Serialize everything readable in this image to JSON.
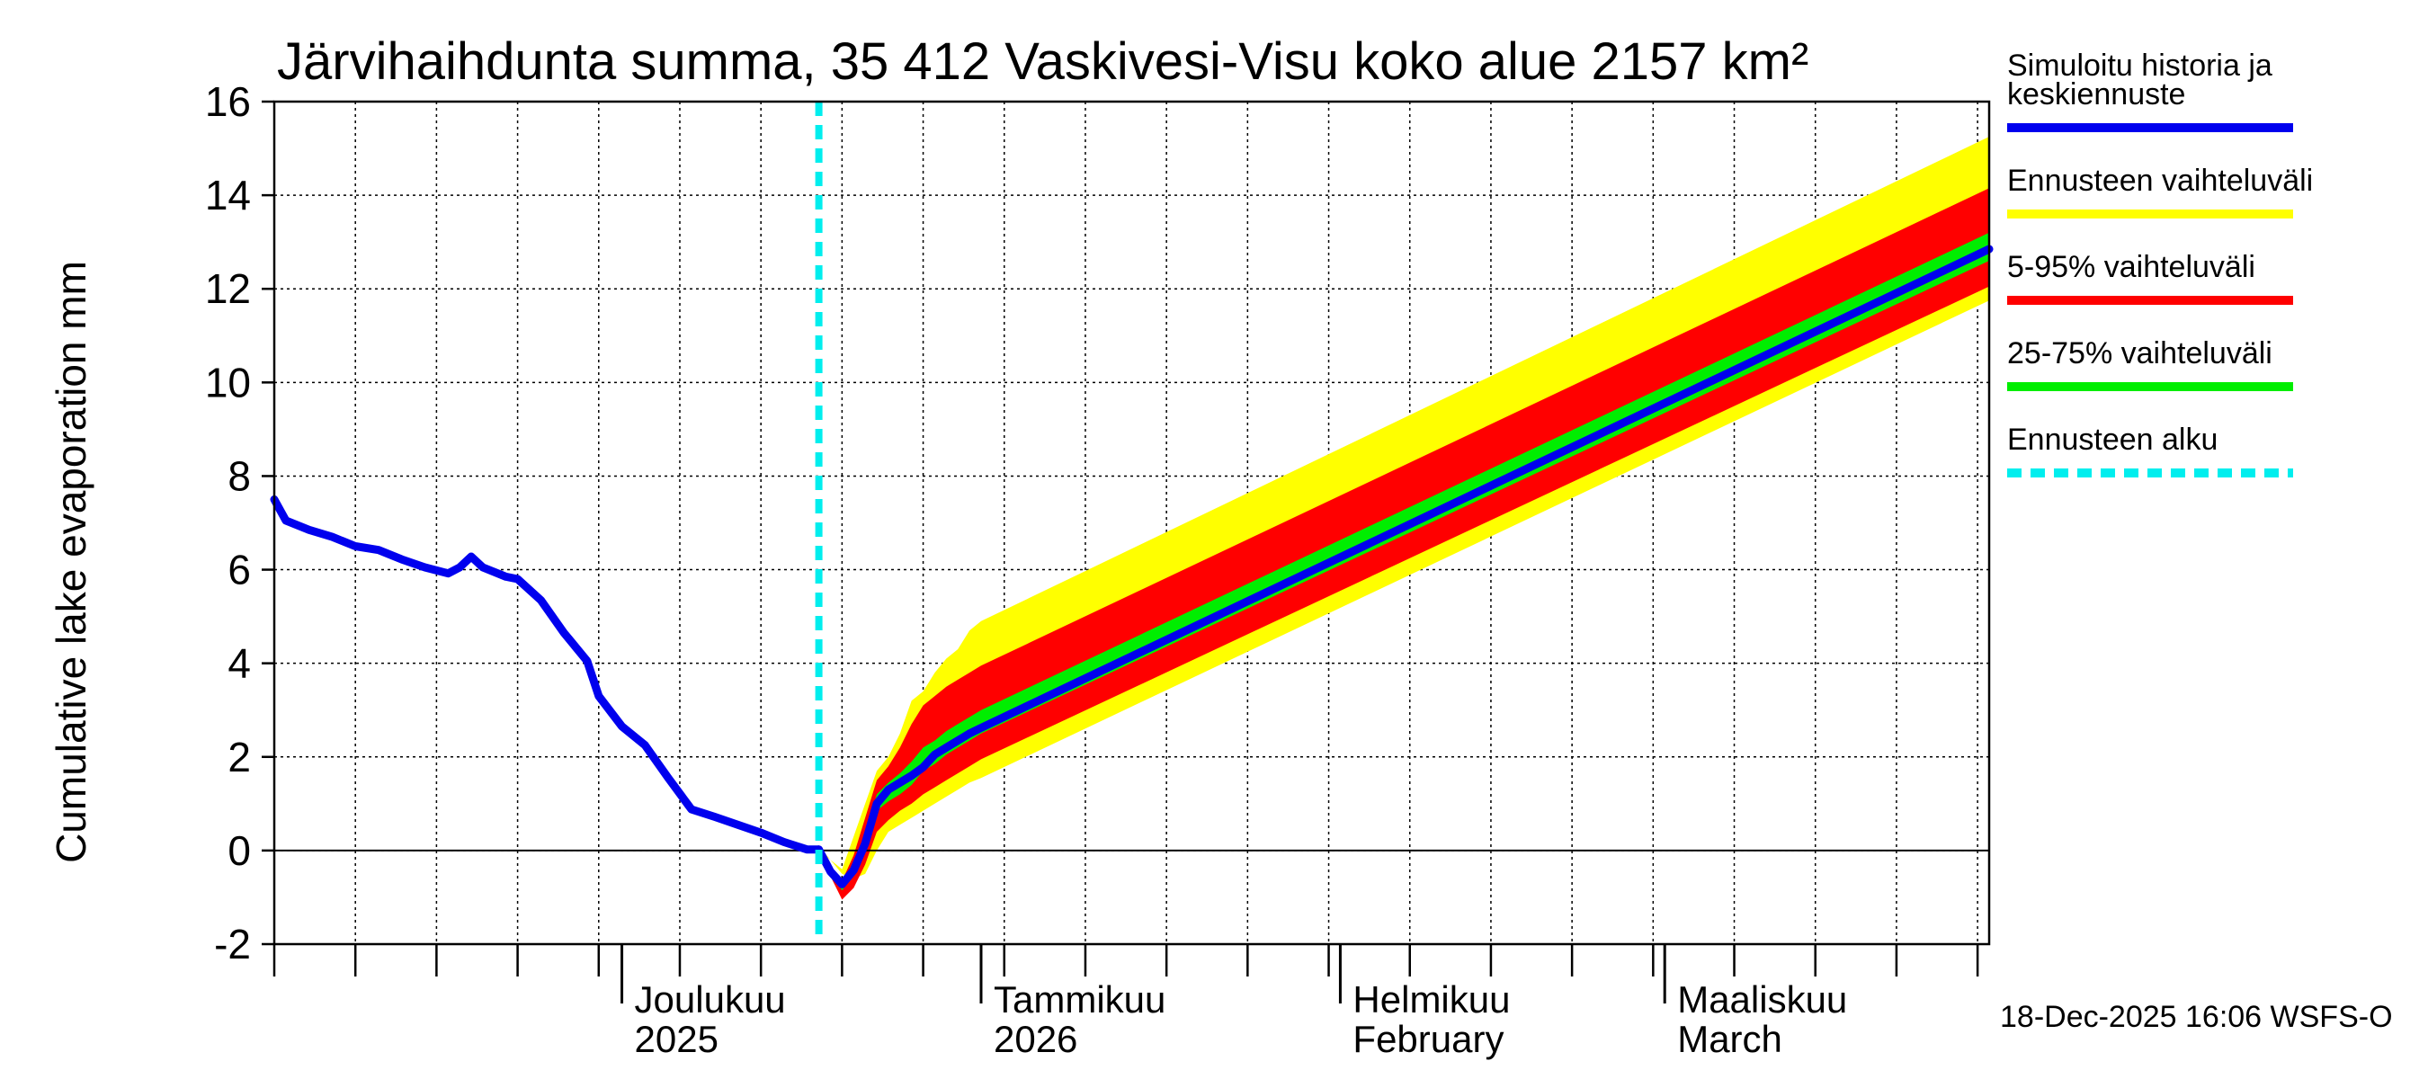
{
  "chart_data": {
    "type": "area",
    "title": "Järvihaihdunta summa, 35 412 Vaskivesi-Visu koko alue 2157 km²",
    "ylabel": "Cumulative lake evaporation   mm",
    "xlabel": "",
    "ylim": [
      -2,
      16
    ],
    "yticks": [
      -2,
      0,
      2,
      4,
      6,
      8,
      10,
      12,
      14,
      16
    ],
    "ytick_labels": [
      "-2",
      "0",
      "2",
      "4",
      "6",
      "8",
      "10",
      "12",
      "14",
      "16"
    ],
    "x_unit": "days since 2025-11-01",
    "xlim": [
      0,
      148
    ],
    "grid": true,
    "day_ticks": [
      0,
      7,
      14,
      21,
      28,
      35,
      42,
      49,
      56,
      63,
      70,
      77,
      84,
      91,
      98,
      105,
      112,
      119,
      126,
      133,
      140,
      147
    ],
    "month_ticks": [
      30,
      61,
      92,
      120
    ],
    "month_labels": [
      {
        "day": 30,
        "line1": "Joulukuu",
        "line2": "2025"
      },
      {
        "day": 61,
        "line1": "Tammikuu",
        "line2": "2026"
      },
      {
        "day": 92,
        "line1": "Helmikuu",
        "line2": "February"
      },
      {
        "day": 120,
        "line1": "Maaliskuu",
        "line2": "March"
      }
    ],
    "forecast_start_day": 47,
    "history": {
      "name": "Simuloitu historia ja keskiennuste",
      "color": "#0000ee",
      "x": [
        0,
        1,
        3,
        5,
        7,
        9,
        11,
        13,
        15,
        16,
        17,
        18,
        20,
        21,
        23,
        25,
        27,
        28,
        30,
        32,
        34,
        36,
        38,
        40,
        42,
        44,
        46,
        47
      ],
      "y": [
        7.5,
        7.05,
        6.85,
        6.7,
        6.5,
        6.42,
        6.22,
        6.05,
        5.92,
        6.05,
        6.28,
        6.05,
        5.85,
        5.8,
        5.35,
        4.65,
        4.05,
        3.3,
        2.65,
        2.25,
        1.55,
        0.88,
        0.72,
        0.55,
        0.38,
        0.18,
        0.02,
        0.02
      ]
    },
    "forecast_x": [
      47,
      48,
      49,
      50,
      51,
      52,
      53,
      54,
      55,
      56,
      57,
      58,
      59,
      60,
      61,
      148
    ],
    "series": [
      {
        "name": "Ennusteen vaihteluväli",
        "color": "#ffff00",
        "kind": "band",
        "upper": [
          0.1,
          -0.2,
          -0.4,
          0.3,
          1.0,
          1.7,
          2.0,
          2.5,
          3.2,
          3.4,
          3.8,
          4.1,
          4.3,
          4.7,
          4.9,
          15.25
        ],
        "lower": [
          0.0,
          -0.2,
          -0.5,
          -0.6,
          -0.5,
          0.0,
          0.4,
          0.55,
          0.7,
          0.85,
          1.0,
          1.15,
          1.3,
          1.45,
          1.55,
          11.75
        ]
      },
      {
        "name": "5-95% vaihteluväli",
        "color": "#ff0000",
        "kind": "band",
        "upper": [
          0.05,
          -0.35,
          -0.65,
          -0.1,
          0.7,
          1.5,
          1.8,
          2.2,
          2.7,
          3.1,
          3.3,
          3.5,
          3.65,
          3.8,
          3.95,
          14.15
        ],
        "lower": [
          0.0,
          -0.55,
          -1.05,
          -0.8,
          -0.3,
          0.4,
          0.65,
          0.85,
          1.0,
          1.2,
          1.35,
          1.5,
          1.65,
          1.8,
          1.95,
          12.05
        ]
      },
      {
        "name": "25-75% vaihteluväli",
        "color": "#00ee00",
        "kind": "band",
        "upper": [
          0.03,
          -0.45,
          -0.75,
          -0.35,
          0.3,
          1.2,
          1.45,
          1.65,
          1.9,
          2.2,
          2.35,
          2.55,
          2.7,
          2.85,
          3.0,
          13.2
        ],
        "lower": [
          0.0,
          -0.5,
          -0.85,
          -0.55,
          0.0,
          0.85,
          1.05,
          1.2,
          1.4,
          1.7,
          1.85,
          2.05,
          2.2,
          2.35,
          2.5,
          12.6
        ]
      },
      {
        "name": "Simuloitu historia ja keskiennuste",
        "color": "#0000ee",
        "kind": "line",
        "values": [
          0.02,
          -0.45,
          -0.72,
          -0.42,
          0.15,
          1.0,
          1.3,
          1.45,
          1.6,
          1.78,
          2.05,
          2.2,
          2.35,
          2.5,
          2.62,
          12.85
        ]
      }
    ],
    "legend": [
      {
        "label": "Simuloitu historia ja keskiennuste",
        "color": "#0000ee",
        "style": "solid"
      },
      {
        "label": "Ennusteen vaihteluväli",
        "color": "#ffff00",
        "style": "solid"
      },
      {
        "label": "5-95% vaihteluväli",
        "color": "#ff0000",
        "style": "solid"
      },
      {
        "label": "25-75% vaihteluväli",
        "color": "#00ee00",
        "style": "solid"
      },
      {
        "label": "Ennusteen alku",
        "color": "#00eeee",
        "style": "dashed"
      }
    ],
    "legend_position": "right, outside plot",
    "footer": "18-Dec-2025 16:06 WSFS-O"
  }
}
